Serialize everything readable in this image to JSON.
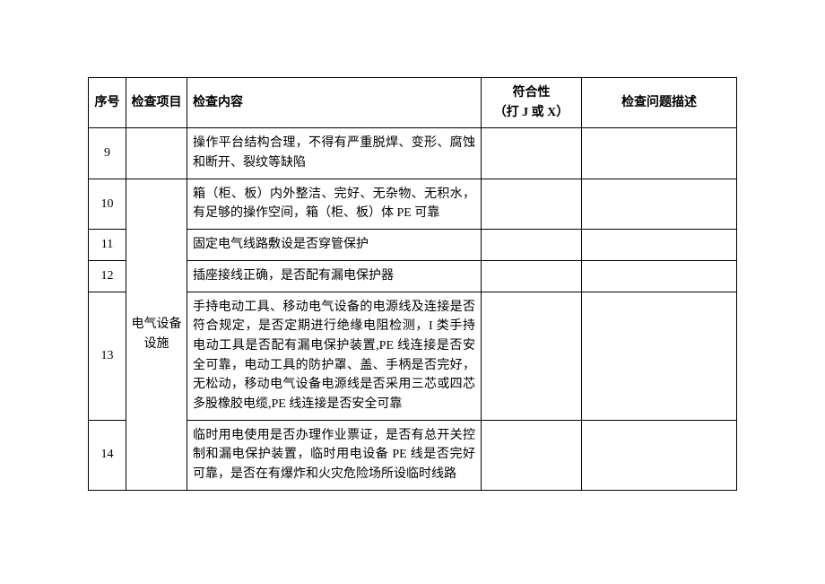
{
  "headers": {
    "seq": "序号",
    "category": "检查项目",
    "content": "检查内容",
    "compliance_line1": "符合性",
    "compliance_line2": "（打 J 或 X）",
    "problem": "检查问题描述"
  },
  "category_label": "电气设备设施",
  "rows": [
    {
      "seq": "9",
      "content": "操作平台结构合理，不得有严重脱焊、变形、腐蚀和断开、裂纹等缺陷"
    },
    {
      "seq": "10",
      "content": "箱（柜、板）内外整洁、完好、无杂物、无积水，有足够的操作空间，箱（柜、板）体 PE 可靠"
    },
    {
      "seq": "11",
      "content": "固定电气线路敷设是否穿管保护"
    },
    {
      "seq": "12",
      "content": "插座接线正确，是否配有漏电保护器"
    },
    {
      "seq": "13",
      "content": "手持电动工具、移动电气设备的电源线及连接是否符合规定，是否定期进行绝缘电阻检测，I 类手持电动工具是否配有漏电保护装置,PE 线连接是否安全可靠，电动工具的防护罩、盖、手柄是否完好，无松动，移动电气设备电源线是否采用三芯或四芯多股橡胶电缆,PE 线连接是否安全可靠"
    },
    {
      "seq": "14",
      "content": "临时用电使用是否办理作业票证，是否有总开关控制和漏电保护装置，临时用电设备 PE 线是否完好可靠，是否在有爆炸和火灾危险场所设临时线路"
    }
  ],
  "style": {
    "background_color": "#ffffff",
    "border_color": "#000000",
    "text_color": "#000000",
    "font_size": 14,
    "col_widths": {
      "seq": 42,
      "category": 68,
      "content": 328,
      "compliance": 112
    }
  }
}
